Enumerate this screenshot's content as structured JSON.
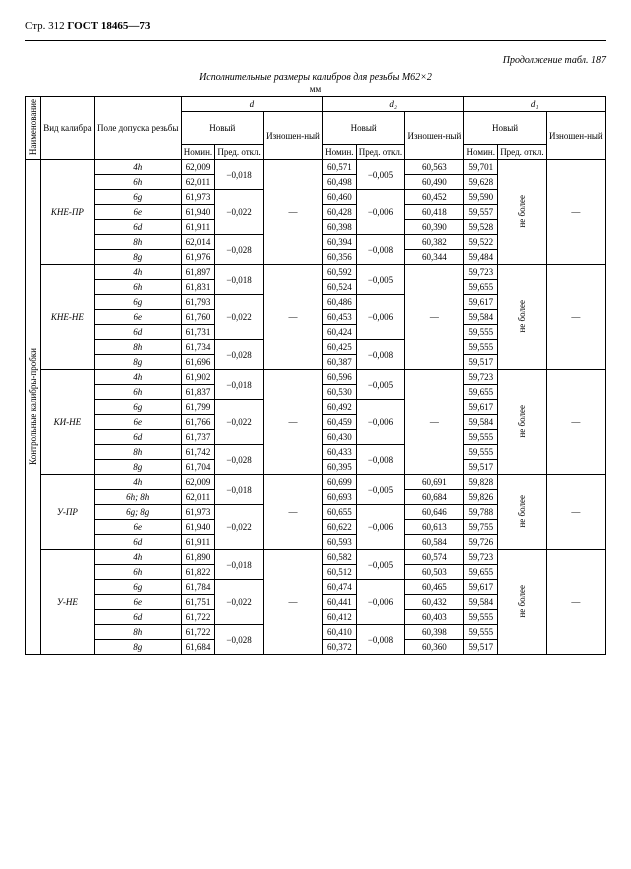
{
  "header": {
    "page": "Стр. 312",
    "standard": "ГОСТ 18465—73"
  },
  "continuation": "Продолжение табл. 187",
  "title": "Исполнительные размеры калибров для резьбы М62×2",
  "unit": "мм",
  "cols": {
    "naim": "Наименование",
    "vid": "Вид калибра",
    "pole": "Поле допуска резьбы",
    "d": "d",
    "d2": "d₂",
    "d1": "d₁",
    "novyj": "Новый",
    "nomin": "Номин.",
    "pred": "Пред. откл.",
    "izn": "Изношен-ный"
  },
  "sideLabel": "Контрольные калибры-пробки",
  "neBolee": "не более",
  "dash": "—",
  "sections": [
    {
      "name": "КНЕ-ПР",
      "rows": [
        {
          "pole": "4h",
          "d_nom": "62,009",
          "d_pred": "−0,018",
          "d2_nom": "60,571",
          "d2_pred": "−0,005",
          "d2_izn": "60,563",
          "d1_nom": "59,701"
        },
        {
          "pole": "6h",
          "d_nom": "62,011",
          "d_pred": "",
          "d2_nom": "60,498",
          "d2_pred": "",
          "d2_izn": "60,490",
          "d1_nom": "59,628"
        },
        {
          "pole": "6g",
          "d_nom": "61,973",
          "d_pred": "−0,022",
          "d2_nom": "60,460",
          "d2_pred": "−0,006",
          "d2_izn": "60,452",
          "d1_nom": "59,590"
        },
        {
          "pole": "6e",
          "d_nom": "61,940",
          "d_pred": "",
          "d2_nom": "60,428",
          "d2_pred": "",
          "d2_izn": "60,418",
          "d1_nom": "59,557"
        },
        {
          "pole": "6d",
          "d_nom": "61,911",
          "d_pred": "",
          "d2_nom": "60,398",
          "d2_pred": "",
          "d2_izn": "60,390",
          "d1_nom": "59,528"
        },
        {
          "pole": "8h",
          "d_nom": "62,014",
          "d_pred": "−0,028",
          "d2_nom": "60,394",
          "d2_pred": "−0,008",
          "d2_izn": "60,382",
          "d1_nom": "59,522"
        },
        {
          "pole": "8g",
          "d_nom": "61,976",
          "d_pred": "",
          "d2_nom": "60,356",
          "d2_pred": "",
          "d2_izn": "60,344",
          "d1_nom": "59,484"
        }
      ]
    },
    {
      "name": "КНЕ-НЕ",
      "rows": [
        {
          "pole": "4h",
          "d_nom": "61,897",
          "d_pred": "−0,018",
          "d2_nom": "60,592",
          "d2_pred": "−0,005",
          "d2_izn": "",
          "d1_nom": "59,723"
        },
        {
          "pole": "6h",
          "d_nom": "61,831",
          "d_pred": "",
          "d2_nom": "60,524",
          "d2_pred": "",
          "d2_izn": "",
          "d1_nom": "59,655"
        },
        {
          "pole": "6g",
          "d_nom": "61,793",
          "d_pred": "−0,022",
          "d2_nom": "60,486",
          "d2_pred": "−0,006",
          "d2_izn": "",
          "d1_nom": "59,617"
        },
        {
          "pole": "6e",
          "d_nom": "61,760",
          "d_pred": "",
          "d2_nom": "60,453",
          "d2_pred": "",
          "d2_izn": "",
          "d1_nom": "59,584"
        },
        {
          "pole": "6d",
          "d_nom": "61,731",
          "d_pred": "",
          "d2_nom": "60,424",
          "d2_pred": "",
          "d2_izn": "",
          "d1_nom": "59,555"
        },
        {
          "pole": "8h",
          "d_nom": "61,734",
          "d_pred": "−0,028",
          "d2_nom": "60,425",
          "d2_pred": "−0,008",
          "d2_izn": "",
          "d1_nom": "59,555"
        },
        {
          "pole": "8g",
          "d_nom": "61,696",
          "d_pred": "",
          "d2_nom": "60,387",
          "d2_pred": "",
          "d2_izn": "",
          "d1_nom": "59,517"
        }
      ]
    },
    {
      "name": "КИ-НЕ",
      "rows": [
        {
          "pole": "4h",
          "d_nom": "61,902",
          "d_pred": "−0,018",
          "d2_nom": "60,596",
          "d2_pred": "−0,005",
          "d2_izn": "",
          "d1_nom": "59,723"
        },
        {
          "pole": "6h",
          "d_nom": "61,837",
          "d_pred": "",
          "d2_nom": "60,530",
          "d2_pred": "",
          "d2_izn": "",
          "d1_nom": "59,655"
        },
        {
          "pole": "6g",
          "d_nom": "61,799",
          "d_pred": "−0,022",
          "d2_nom": "60,492",
          "d2_pred": "−0,006",
          "d2_izn": "",
          "d1_nom": "59,617"
        },
        {
          "pole": "6e",
          "d_nom": "61,766",
          "d_pred": "",
          "d2_nom": "60,459",
          "d2_pred": "",
          "d2_izn": "",
          "d1_nom": "59,584"
        },
        {
          "pole": "6d",
          "d_nom": "61,737",
          "d_pred": "",
          "d2_nom": "60,430",
          "d2_pred": "",
          "d2_izn": "",
          "d1_nom": "59,555"
        },
        {
          "pole": "8h",
          "d_nom": "61,742",
          "d_pred": "−0,028",
          "d2_nom": "60,433",
          "d2_pred": "−0,008",
          "d2_izn": "",
          "d1_nom": "59,555"
        },
        {
          "pole": "8g",
          "d_nom": "61,704",
          "d_pred": "",
          "d2_nom": "60,395",
          "d2_pred": "",
          "d2_izn": "",
          "d1_nom": "59,517"
        }
      ]
    },
    {
      "name": "У-ПР",
      "rows": [
        {
          "pole": "4h",
          "d_nom": "62,009",
          "d_pred": "−0,018",
          "d2_nom": "60,699",
          "d2_pred": "−0,005",
          "d2_izn": "60,691",
          "d1_nom": "59,828"
        },
        {
          "pole": "6h; 8h",
          "d_nom": "62,011",
          "d_pred": "",
          "d2_nom": "60,693",
          "d2_pred": "",
          "d2_izn": "60,684",
          "d1_nom": "59,826"
        },
        {
          "pole": "6g; 8g",
          "d_nom": "61,973",
          "d_pred": "−0,022",
          "d2_nom": "60,655",
          "d2_pred": "−0,006",
          "d2_izn": "60,646",
          "d1_nom": "59,788"
        },
        {
          "pole": "6e",
          "d_nom": "61,940",
          "d_pred": "",
          "d2_nom": "60,622",
          "d2_pred": "",
          "d2_izn": "60,613",
          "d1_nom": "59,755"
        },
        {
          "pole": "6d",
          "d_nom": "61,911",
          "d_pred": "",
          "d2_nom": "60,593",
          "d2_pred": "",
          "d2_izn": "60,584",
          "d1_nom": "59,726"
        }
      ]
    },
    {
      "name": "У-НЕ",
      "rows": [
        {
          "pole": "4h",
          "d_nom": "61,890",
          "d_pred": "−0,018",
          "d2_nom": "60,582",
          "d2_pred": "−0,005",
          "d2_izn": "60,574",
          "d1_nom": "59,723"
        },
        {
          "pole": "6h",
          "d_nom": "61,822",
          "d_pred": "",
          "d2_nom": "60,512",
          "d2_pred": "",
          "d2_izn": "60,503",
          "d1_nom": "59,655"
        },
        {
          "pole": "6g",
          "d_nom": "61,784",
          "d_pred": "−0,022",
          "d2_nom": "60,474",
          "d2_pred": "−0,006",
          "d2_izn": "60,465",
          "d1_nom": "59,617"
        },
        {
          "pole": "6e",
          "d_nom": "61,751",
          "d_pred": "",
          "d2_nom": "60,441",
          "d2_pred": "",
          "d2_izn": "60,432",
          "d1_nom": "59,584"
        },
        {
          "pole": "6d",
          "d_nom": "61,722",
          "d_pred": "",
          "d2_nom": "60,412",
          "d2_pred": "",
          "d2_izn": "60,403",
          "d1_nom": "59,555"
        },
        {
          "pole": "8h",
          "d_nom": "61,722",
          "d_pred": "−0,028",
          "d2_nom": "60,410",
          "d2_pred": "−0,008",
          "d2_izn": "60,398",
          "d1_nom": "59,555"
        },
        {
          "pole": "8g",
          "d_nom": "61,684",
          "d_pred": "",
          "d2_nom": "60,372",
          "d2_pred": "",
          "d2_izn": "60,360",
          "d1_nom": "59,517"
        }
      ]
    }
  ]
}
